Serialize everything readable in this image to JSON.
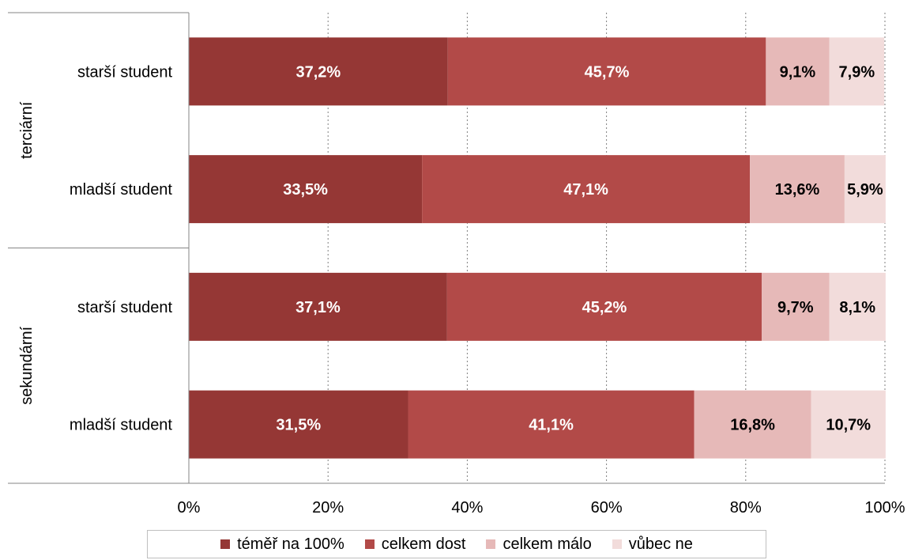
{
  "chart_data": {
    "type": "bar",
    "orientation": "horizontal",
    "stacked": true,
    "groups": [
      {
        "label": "terciární",
        "categories": [
          "starší student",
          "mladší student"
        ]
      },
      {
        "label": "sekundární",
        "categories": [
          "starší student",
          "mladší student"
        ]
      }
    ],
    "categories": [
      "starší student",
      "mladší student",
      "starší student",
      "mladší student"
    ],
    "series": [
      {
        "name": "téměř na 100%",
        "color": "#953735",
        "values": [
          37.2,
          33.5,
          37.1,
          31.5
        ],
        "labels": [
          "37,2%",
          "33,5%",
          "37,1%",
          "31,5%"
        ]
      },
      {
        "name": "celkem dost",
        "color": "#b24a48",
        "values": [
          45.7,
          47.1,
          45.2,
          41.1
        ],
        "labels": [
          "45,7%",
          "47,1%",
          "45,2%",
          "41,1%"
        ]
      },
      {
        "name": "celkem málo",
        "color": "#e6b9b8",
        "values": [
          9.1,
          13.6,
          9.7,
          16.8
        ],
        "labels": [
          "9,1%",
          "13,6%",
          "9,7%",
          "16,8%"
        ]
      },
      {
        "name": "vůbec ne",
        "color": "#f2dcdb",
        "values": [
          7.9,
          5.9,
          8.1,
          10.7
        ],
        "labels": [
          "7,9%",
          "5,9%",
          "8,1%",
          "10,7%"
        ]
      }
    ],
    "xlim": [
      0,
      100
    ],
    "x_ticks": [
      "0%",
      "20%",
      "40%",
      "60%",
      "80%",
      "100%"
    ],
    "grid": "vertical-dotted",
    "legend_position": "bottom"
  }
}
